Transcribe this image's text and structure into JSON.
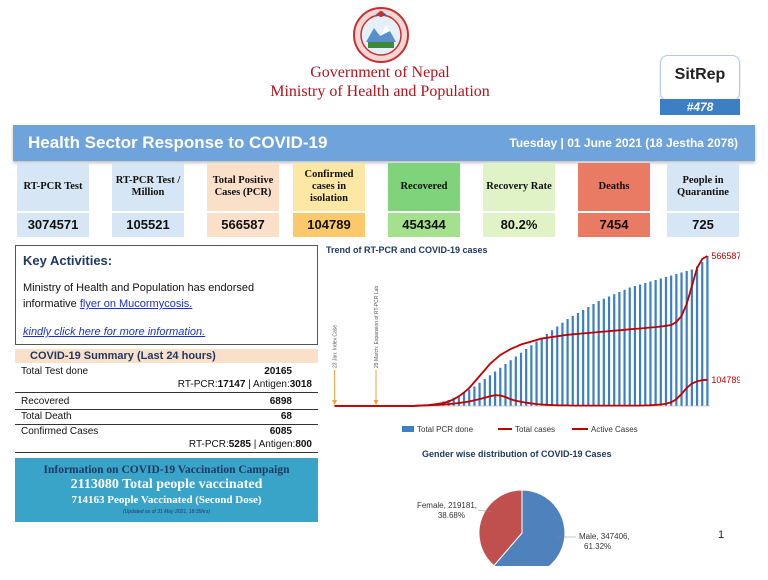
{
  "header": {
    "gov_line1": "Government of Nepal",
    "gov_line2": "Ministry of Health and Population",
    "sitrep_label": "SitRep",
    "sitrep_number": "#478"
  },
  "banner": {
    "title": "Health Sector Response to COVID-19",
    "date": "Tuesday | 01 June 2021 (18 Jestha 2078)"
  },
  "tiles": [
    {
      "label": "RT-PCR Test",
      "value": "3074571",
      "head_color": "#d6e6f5",
      "val_color": "#d6e6f5"
    },
    {
      "label": "RT-PCR Test / Million",
      "value": "105521",
      "head_color": "#d6e6f5",
      "val_color": "#d6e6f5"
    },
    {
      "label": "Total Positive Cases (PCR)",
      "value": "566587",
      "head_color": "#fadfc9",
      "val_color": "#fadfc9"
    },
    {
      "label": "Confirmed cases in isolation",
      "value": "104789",
      "head_color": "#fde7a4",
      "val_color": "#fbc86a"
    },
    {
      "label": "Recovered",
      "value": "454344",
      "head_color": "#7fd37a",
      "val_color": "#a5e08e"
    },
    {
      "label": "Recovery Rate",
      "value": "80.2%",
      "head_color": "#dff3c6",
      "val_color": "#dff3c6"
    },
    {
      "label": "Deaths",
      "value": "7454",
      "head_color": "#e97a63",
      "val_color": "#e97a63"
    },
    {
      "label": "People in Quarantine",
      "value": "725",
      "head_color": "#d6e6f5",
      "val_color": "#d6e6f5"
    }
  ],
  "key_activities": {
    "title": "Key Activities:",
    "text1": "Ministry of Health and Population has endorsed",
    "text2_prefix": "informative ",
    "link1": "flyer on Mucormycosis.",
    "link2": "kindly click here for more information."
  },
  "summary": {
    "title": "COVID-19 Summary (Last 24 hours)",
    "rows": [
      {
        "label": "Total Test done",
        "value": "20165"
      },
      {
        "label": "Recovered",
        "value": "6898"
      },
      {
        "label": "Total Death",
        "value": "68"
      },
      {
        "label": "Confirmed Cases",
        "value": "6085"
      }
    ],
    "test_breakdown": {
      "rtpcr_label": "RT-PCR:",
      "rtpcr": "17147",
      "sep": " | ",
      "antigen_label": "Antigen:",
      "antigen": "3018"
    },
    "case_breakdown": {
      "rtpcr_label": "RT-PCR:",
      "rtpcr": "5285",
      "sep": " | ",
      "antigen_label": "Antigen:",
      "antigen": "800"
    }
  },
  "vaccination": {
    "line1": "Information on COVID-19 Vaccination Campaign",
    "line2": "2113080 Total people vaccinated",
    "line3": "714163 People Vaccinated (Second Dose)",
    "note": "(Updated as of 31 May 2021, 18:35hrs)"
  },
  "page_number": "1",
  "colors": {
    "brand_red": "#b5121b",
    "banner_blue": "#6fa3dc",
    "bar_blue": "#3d7fc4",
    "line_red": "#c00000",
    "pie_male": "#4f81bd",
    "pie_female": "#c0504d"
  },
  "chart_data": [
    {
      "type": "line",
      "title": "Trend of RT-PCR and COVID-19 cases",
      "series": [
        {
          "name": "Total PCR done",
          "style": "bar",
          "values": [
            0,
            0,
            0,
            0,
            0,
            0,
            0,
            0,
            0,
            0,
            0,
            0,
            0,
            0,
            0,
            0,
            0.005,
            0.007,
            0.01,
            0.015,
            0.02,
            0.03,
            0.04,
            0.055,
            0.07,
            0.09,
            0.11,
            0.13,
            0.155,
            0.18,
            0.205,
            0.23,
            0.255,
            0.28,
            0.305,
            0.33,
            0.355,
            0.38,
            0.405,
            0.43,
            0.455,
            0.48,
            0.505,
            0.53,
            0.555,
            0.58,
            0.6,
            0.62,
            0.64,
            0.66,
            0.68,
            0.7,
            0.715,
            0.73,
            0.745,
            0.76,
            0.775,
            0.79,
            0.8,
            0.81,
            0.82,
            0.83,
            0.84,
            0.85,
            0.86,
            0.87,
            0.88,
            0.89,
            0.9,
            0.91,
            0.93,
            0.96,
            1.0
          ]
        },
        {
          "name": "Total  cases",
          "style": "line",
          "values": [
            0,
            0,
            0,
            0,
            0,
            0,
            0,
            0,
            0,
            0,
            0,
            0,
            0,
            0,
            0,
            0,
            0.002,
            0.004,
            0.006,
            0.01,
            0.015,
            0.02,
            0.03,
            0.045,
            0.065,
            0.09,
            0.12,
            0.16,
            0.2,
            0.24,
            0.28,
            0.31,
            0.34,
            0.36,
            0.38,
            0.395,
            0.41,
            0.42,
            0.43,
            0.44,
            0.45,
            0.455,
            0.46,
            0.465,
            0.47,
            0.475,
            0.478,
            0.481,
            0.484,
            0.487,
            0.49,
            0.493,
            0.496,
            0.499,
            0.502,
            0.505,
            0.508,
            0.511,
            0.514,
            0.517,
            0.52,
            0.523,
            0.526,
            0.53,
            0.535,
            0.54,
            0.56,
            0.6,
            0.68,
            0.8,
            0.92,
            0.98,
            1.0
          ]
        },
        {
          "name": "Active Cases",
          "style": "line",
          "values": [
            0,
            0,
            0,
            0,
            0,
            0,
            0,
            0,
            0,
            0,
            0,
            0,
            0,
            0,
            0,
            0,
            0.002,
            0.003,
            0.004,
            0.006,
            0.008,
            0.01,
            0.013,
            0.016,
            0.02,
            0.025,
            0.03,
            0.038,
            0.046,
            0.055,
            0.065,
            0.072,
            0.07,
            0.06,
            0.045,
            0.035,
            0.028,
            0.022,
            0.017,
            0.013,
            0.01,
            0.008,
            0.006,
            0.005,
            0.004,
            0.004,
            0.003,
            0.003,
            0.003,
            0.003,
            0.003,
            0.003,
            0.003,
            0.003,
            0.003,
            0.003,
            0.003,
            0.003,
            0.003,
            0.003,
            0.004,
            0.005,
            0.007,
            0.01,
            0.015,
            0.025,
            0.045,
            0.08,
            0.12,
            0.15,
            0.165,
            0.172,
            0.175
          ]
        }
      ],
      "end_labels": {
        "total_cases": "566587",
        "active_cases": "104789"
      },
      "annotations": [
        "23 Jan: Index Case",
        "29 March: Expansion of RT-PCR Lab"
      ],
      "legend_placement": "bottom"
    },
    {
      "type": "pie",
      "title": "Gender wise distribution of COVID-19 Cases",
      "slices": [
        {
          "name": "Male",
          "value": 347406,
          "label": "Male, 347406,",
          "pct_label": "61.32%"
        },
        {
          "name": "Female",
          "value": 219181,
          "label": "Female, 219181,",
          "pct_label": "38.68%"
        }
      ]
    }
  ]
}
